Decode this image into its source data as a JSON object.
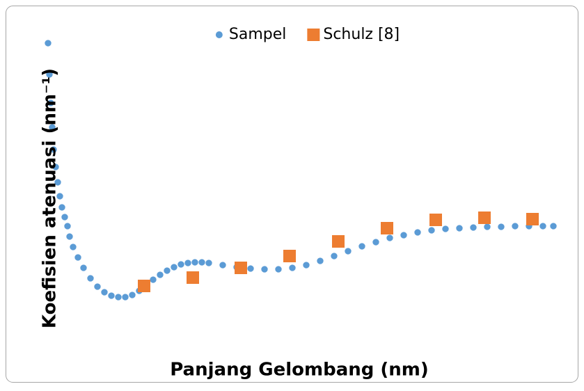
{
  "chart_data": {
    "type": "scatter",
    "x_label": "Panjang Gelombang (nm)",
    "y_label": "Koefisien atenuasi (nm⁻¹)",
    "legend": "top",
    "xlim": [
      0,
      740
    ],
    "ylim": [
      0,
      430
    ],
    "series": [
      {
        "name": "Sampel",
        "color": "#5b9bd5",
        "marker": "circle",
        "x": [
          9,
          11,
          13,
          15,
          17,
          20,
          23,
          26,
          29,
          33,
          37,
          40,
          45,
          52,
          60,
          70,
          80,
          90,
          100,
          110,
          120,
          130,
          140,
          150,
          160,
          170,
          180,
          190,
          200,
          210,
          220,
          230,
          240,
          260,
          280,
          300,
          320,
          340,
          360,
          380,
          400,
          420,
          440,
          460,
          480,
          500,
          520,
          540,
          560,
          580,
          600,
          620,
          640,
          660,
          680,
          700,
          720,
          735
        ],
        "values": [
          408,
          363,
          322,
          287,
          255,
          230,
          208,
          188,
          172,
          158,
          145,
          130,
          115,
          100,
          85,
          70,
          58,
          50,
          45,
          43,
          43,
          46,
          52,
          60,
          68,
          75,
          81,
          86,
          90,
          92,
          93,
          93,
          92,
          89,
          86,
          84,
          83,
          83,
          85,
          89,
          95,
          102,
          109,
          116,
          122,
          128,
          132,
          136,
          139,
          141,
          142,
          143,
          144,
          144,
          145,
          145,
          145,
          145
        ]
      },
      {
        "name": "Schulz [8]",
        "color": "#ed7d31",
        "marker": "square",
        "x": [
          147,
          217,
          286,
          356,
          426,
          496,
          566,
          636,
          705
        ],
        "values": [
          59,
          71,
          85,
          102,
          123,
          142,
          154,
          157,
          155
        ]
      }
    ]
  }
}
